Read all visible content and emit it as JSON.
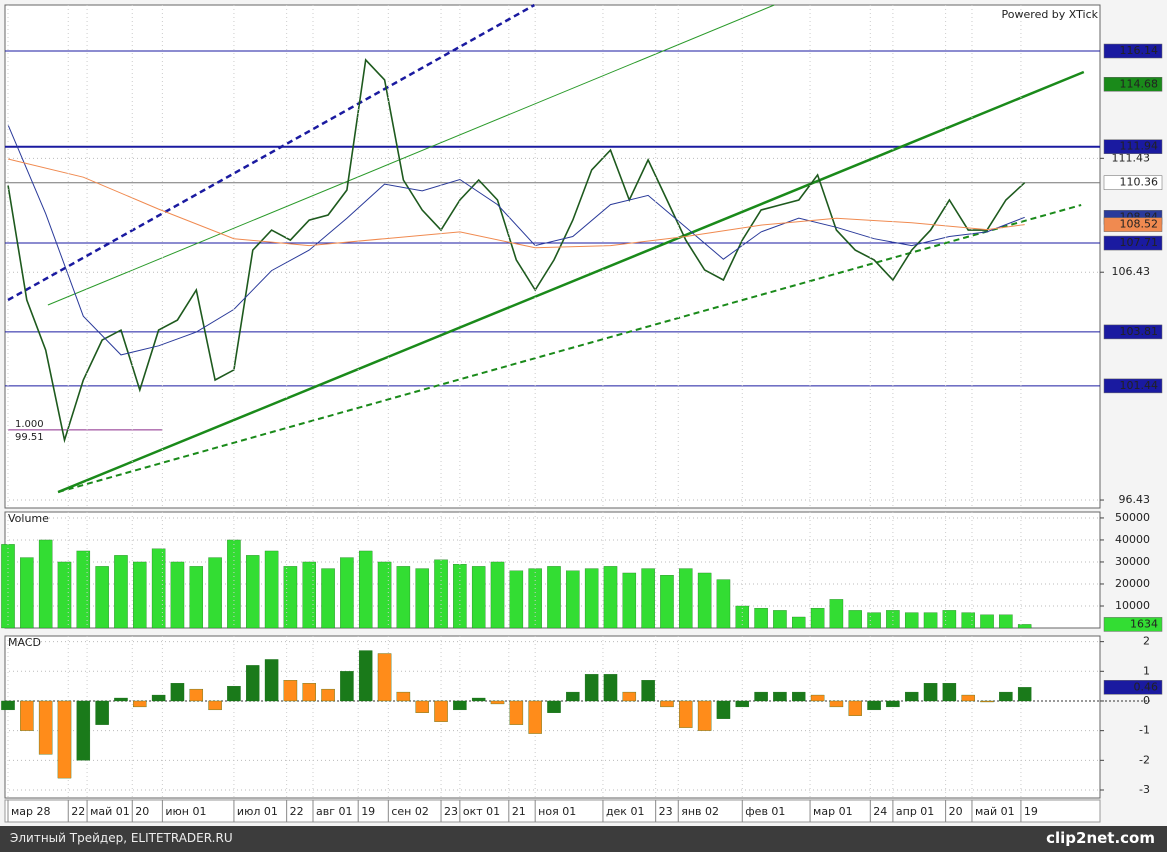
{
  "chart_data": [
    {
      "type": "line",
      "watermark": "Powered by XTick",
      "xlim": [
        0,
        290
      ],
      "ylim": [
        96.08,
        118.16
      ],
      "yticks": [
        96.43,
        106.43,
        111.43
      ],
      "grid": true,
      "x": [
        0,
        5,
        10,
        15,
        20,
        25,
        30,
        35,
        40,
        45,
        50,
        55,
        60,
        65,
        70,
        75,
        80,
        85,
        90,
        95,
        100,
        105,
        110,
        115,
        120,
        125,
        130,
        135,
        140,
        145,
        150,
        155,
        160,
        165,
        170,
        175,
        180,
        185,
        190,
        195,
        200,
        205,
        210,
        215,
        220,
        225,
        230,
        235,
        240,
        245,
        250,
        255,
        260,
        265,
        270
      ],
      "series": [
        {
          "color": "#1e5a1e",
          "values": [
            110.26,
            105.21,
            103.01,
            99.06,
            101.7,
            103.45,
            103.89,
            101.26,
            103.89,
            104.33,
            105.65,
            101.7,
            102.14,
            107.4,
            108.28,
            107.84,
            108.72,
            108.94,
            110.04,
            115.75,
            114.87,
            110.48,
            109.16,
            108.28,
            109.6,
            110.48,
            109.6,
            106.97,
            105.65,
            106.97,
            108.72,
            110.92,
            111.79,
            109.6,
            111.36,
            109.6,
            107.84,
            106.53,
            106.09,
            107.84,
            109.16,
            109.38,
            109.6,
            110.7,
            108.28,
            107.4,
            106.97,
            106.09,
            107.4,
            108.28,
            109.6,
            108.28,
            108.28,
            109.6,
            110.36
          ]
        },
        {
          "color": "#2a3a9a",
          "x": [
            0,
            10,
            20,
            30,
            40,
            50,
            60,
            70,
            80,
            90,
            100,
            110,
            120,
            130,
            140,
            150,
            160,
            170,
            180,
            190,
            200,
            210,
            220,
            230,
            240,
            250,
            260,
            270
          ],
          "values": [
            112.9,
            109.0,
            104.5,
            102.8,
            103.2,
            103.8,
            104.8,
            106.5,
            107.4,
            108.8,
            110.3,
            110.0,
            110.5,
            109.4,
            107.6,
            108.0,
            109.4,
            109.8,
            108.4,
            107.0,
            108.2,
            108.8,
            108.4,
            107.9,
            107.6,
            108.0,
            108.2,
            108.84
          ]
        },
        {
          "color": "#f08a50",
          "x": [
            0,
            20,
            40,
            60,
            80,
            100,
            120,
            140,
            160,
            180,
            200,
            220,
            240,
            260,
            270
          ],
          "values": [
            111.4,
            110.6,
            109.2,
            107.9,
            107.6,
            107.9,
            108.2,
            107.5,
            107.6,
            108.0,
            108.5,
            108.8,
            108.6,
            108.3,
            108.52
          ]
        }
      ],
      "trendlines": [
        {
          "x": [
            13.3,
            285.7
          ],
          "y": [
            96.78,
            115.22
          ],
          "color": "#1a8a1a",
          "width": 2.5,
          "dash": false
        },
        {
          "x": [
            10.6,
            203.5
          ],
          "y": [
            104.99,
            118.16
          ],
          "color": "#2a9a2a",
          "width": 1,
          "dash": false
        },
        {
          "x": [
            13.3,
            285
          ],
          "y": [
            96.78,
            109.38
          ],
          "color": "#1a8a1a",
          "width": 2,
          "dash": true
        },
        {
          "x": [
            0,
            139.8
          ],
          "y": [
            105.21,
            118.16
          ],
          "color": "#1a1aa0",
          "width": 2.5,
          "dash": true
        }
      ],
      "hlines": [
        {
          "value": 116.14,
          "color": "#1a1aa0",
          "width": 1
        },
        {
          "value": 111.94,
          "color": "#1a1aa0",
          "width": 2
        },
        {
          "value": 107.71,
          "color": "#1a1aa0",
          "width": 1
        },
        {
          "value": 103.81,
          "color": "#1a1aa0",
          "width": 1
        },
        {
          "value": 101.44,
          "color": "#1a1aa0",
          "width": 1
        },
        {
          "value": 110.36,
          "color": "#777777",
          "width": 1
        }
      ],
      "price_labels": [
        {
          "value": 116.14,
          "bg": "#1a1aa0",
          "fg": "#ffffff"
        },
        {
          "value": 114.68,
          "bg": "#1a8a1a",
          "fg": "#ffffff"
        },
        {
          "value": 111.94,
          "bg": "#1a1aa0",
          "fg": "#ffffff"
        },
        {
          "value": 110.36,
          "bg": "#ffffff",
          "fg": "#000000"
        },
        {
          "value": 108.84,
          "bg": "#2a3a9a",
          "fg": "#ffffff"
        },
        {
          "value": 108.52,
          "bg": "#f08a50",
          "fg": "#000000"
        },
        {
          "value": 107.71,
          "bg": "#1a1aa0",
          "fg": "#ffffff"
        },
        {
          "value": 103.81,
          "bg": "#1a1aa0",
          "fg": "#ffffff"
        },
        {
          "value": 101.44,
          "bg": "#1a1aa0",
          "fg": "#ffffff"
        }
      ],
      "fib_label": "1.000",
      "fib_level": 99.51,
      "fib_x": [
        0,
        41
      ],
      "fib_color": "#8a2a8a"
    },
    {
      "type": "bar",
      "label": "Volume",
      "color": "#33dd33",
      "xlim": [
        0,
        290
      ],
      "ylim": [
        0,
        52700
      ],
      "yticks": [
        10000,
        20000,
        30000,
        40000,
        50000
      ],
      "grid": true,
      "x": [
        0,
        5,
        10,
        15,
        20,
        25,
        30,
        35,
        40,
        45,
        50,
        55,
        60,
        65,
        70,
        75,
        80,
        85,
        90,
        95,
        100,
        105,
        110,
        115,
        120,
        125,
        130,
        135,
        140,
        145,
        150,
        155,
        160,
        165,
        170,
        175,
        180,
        185,
        190,
        195,
        200,
        205,
        210,
        215,
        220,
        225,
        230,
        235,
        240,
        245,
        250,
        255,
        260,
        265,
        270
      ],
      "values": [
        38000,
        32000,
        40000,
        30000,
        35000,
        28000,
        33000,
        30000,
        36000,
        30000,
        28000,
        32000,
        40000,
        33000,
        35000,
        28000,
        30000,
        27000,
        32000,
        35000,
        30000,
        28000,
        27000,
        31000,
        29000,
        28000,
        30000,
        26000,
        27000,
        28000,
        26000,
        27000,
        28000,
        25000,
        27000,
        24000,
        27000,
        25000,
        22000,
        10000,
        9000,
        8000,
        5000,
        9000,
        13000,
        8000,
        7000,
        8000,
        7000,
        7000,
        8000,
        7000,
        6000,
        6000,
        1634
      ]
    },
    {
      "type": "bar",
      "label": "MACD",
      "colors": [
        "#1a7a1a",
        "#ff8c1a"
      ],
      "zero_line": true,
      "xlim": [
        0,
        290
      ],
      "ylim": [
        -3.27,
        2.19
      ],
      "yticks": [
        -3,
        -2,
        -1,
        0,
        1,
        2
      ],
      "grid": true,
      "xticks": [
        {
          "value": 0,
          "label": "мар 28"
        },
        {
          "value": 16,
          "label": "22"
        },
        {
          "value": 21,
          "label": "май 01"
        },
        {
          "value": 33,
          "label": "20"
        },
        {
          "value": 41,
          "label": "июн 01"
        },
        {
          "value": 60,
          "label": "июл 01"
        },
        {
          "value": 74,
          "label": "22"
        },
        {
          "value": 81,
          "label": "авг 01"
        },
        {
          "value": 93,
          "label": "19"
        },
        {
          "value": 101,
          "label": "сен 02"
        },
        {
          "value": 115,
          "label": "23"
        },
        {
          "value": 120,
          "label": "окт 01"
        },
        {
          "value": 133,
          "label": "21"
        },
        {
          "value": 140,
          "label": "ноя 01"
        },
        {
          "value": 158,
          "label": "дек 01"
        },
        {
          "value": 172,
          "label": "23"
        },
        {
          "value": 178,
          "label": "янв 02"
        },
        {
          "value": 195,
          "label": "фев 01"
        },
        {
          "value": 213,
          "label": "мар 01"
        },
        {
          "value": 229,
          "label": "24"
        },
        {
          "value": 235,
          "label": "апр 01"
        },
        {
          "value": 249,
          "label": "20"
        },
        {
          "value": 256,
          "label": "май 01"
        },
        {
          "value": 269,
          "label": "19"
        }
      ],
      "x": [
        0,
        5,
        10,
        15,
        20,
        25,
        30,
        35,
        40,
        45,
        50,
        55,
        60,
        65,
        70,
        75,
        80,
        85,
        90,
        95,
        100,
        105,
        110,
        115,
        120,
        125,
        130,
        135,
        140,
        145,
        150,
        155,
        160,
        165,
        170,
        175,
        180,
        185,
        190,
        195,
        200,
        205,
        210,
        215,
        220,
        225,
        230,
        235,
        240,
        245,
        250,
        255,
        260,
        265,
        270
      ],
      "values": [
        -0.3,
        -1,
        -1.8,
        -2.6,
        -2,
        -0.8,
        0.1,
        -0.2,
        0.2,
        0.6,
        0.4,
        -0.3,
        0.5,
        1.2,
        1.4,
        0.7,
        0.6,
        0.4,
        1.0,
        1.7,
        1.6,
        0.3,
        -0.4,
        -0.7,
        -0.3,
        0.1,
        -0.1,
        -0.8,
        -1.1,
        -0.4,
        0.3,
        0.9,
        0.9,
        0.3,
        0.7,
        -0.2,
        -0.9,
        -1.0,
        -0.6,
        -0.2,
        0.3,
        0.3,
        0.3,
        0.2,
        -0.2,
        -0.5,
        -0.3,
        -0.2,
        0.3,
        0.6,
        0.6,
        0.2,
        0.0,
        0.3,
        0.46
      ]
    }
  ],
  "footer": {
    "site": "Элитный Трейдер, ELITETRADER.RU",
    "brand": "clip2net.com"
  }
}
